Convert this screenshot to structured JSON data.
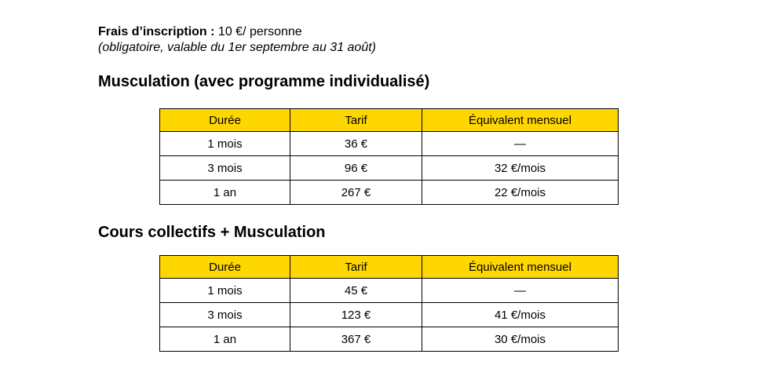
{
  "intro": {
    "fee_label": "Frais d’inscription :",
    "fee_value": "10 €/ personne",
    "note": "(obligatoire, valable du 1er septembre au 31 août)"
  },
  "colors": {
    "page_bg": "#FFFFFF",
    "table_header_bg": "#FFD700",
    "table_border": "#000000",
    "text": "#000000"
  },
  "sections": [
    {
      "title": "Musculation (avec programme individualisé)",
      "table": {
        "headers": [
          "Durée",
          "Tarif",
          "Équivalent mensuel"
        ],
        "rows": [
          [
            "1 mois",
            "36 €",
            "—"
          ],
          [
            "3 mois",
            "96 €",
            "32 €/mois"
          ],
          [
            "1 an",
            "267 €",
            "22 €/mois"
          ]
        ]
      }
    },
    {
      "title": "Cours collectifs + Musculation",
      "table": {
        "headers": [
          "Durée",
          "Tarif",
          "Équivalent mensuel"
        ],
        "rows": [
          [
            "1 mois",
            "45 €",
            "—"
          ],
          [
            "3 mois",
            "123 €",
            "41 €/mois"
          ],
          [
            "1 an",
            "367 €",
            "30 €/mois"
          ]
        ]
      }
    }
  ]
}
